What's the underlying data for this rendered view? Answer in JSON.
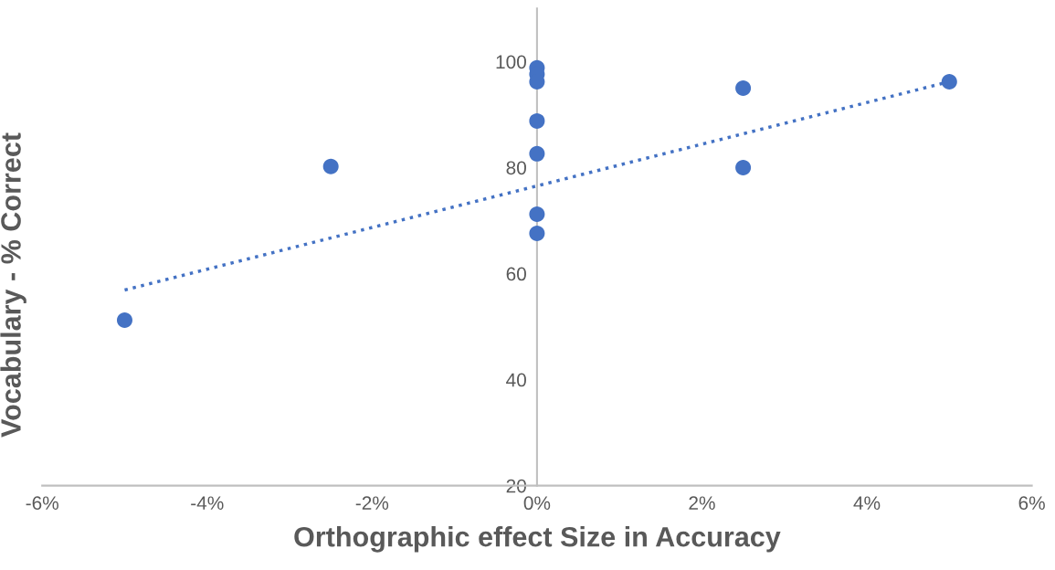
{
  "chart_data": {
    "type": "scatter",
    "xlabel": "Orthographic effect Size in Accuracy",
    "ylabel": "Vocabulary - % Correct",
    "xlim": [
      -6,
      6
    ],
    "ylim": [
      20,
      110
    ],
    "xticks": [
      {
        "value": -6,
        "label": "-6%"
      },
      {
        "value": -4,
        "label": "-4%"
      },
      {
        "value": -2,
        "label": "-2%"
      },
      {
        "value": 0,
        "label": "0%"
      },
      {
        "value": 2,
        "label": "2%"
      },
      {
        "value": 4,
        "label": "4%"
      },
      {
        "value": 6,
        "label": "6%"
      }
    ],
    "yticks": [
      20,
      40,
      60,
      80,
      100
    ],
    "grid": false,
    "legend": false,
    "series": [
      {
        "color": "#4472c4",
        "marker": "circle",
        "x": [
          -5,
          -2.5,
          0,
          0,
          0,
          0,
          0,
          0,
          0,
          2.5,
          2.5,
          5
        ],
        "values": [
          51.2,
          80.2,
          98.8,
          97.6,
          96.2,
          88.8,
          82.6,
          71.2,
          67.6,
          95.0,
          80,
          96.2
        ]
      },
      {
        "type": "line",
        "color": "#4472c4",
        "marker": "none",
        "line_style": "dotted",
        "x": [
          -5,
          5
        ],
        "values": [
          56.9,
          96.2
        ]
      }
    ]
  }
}
